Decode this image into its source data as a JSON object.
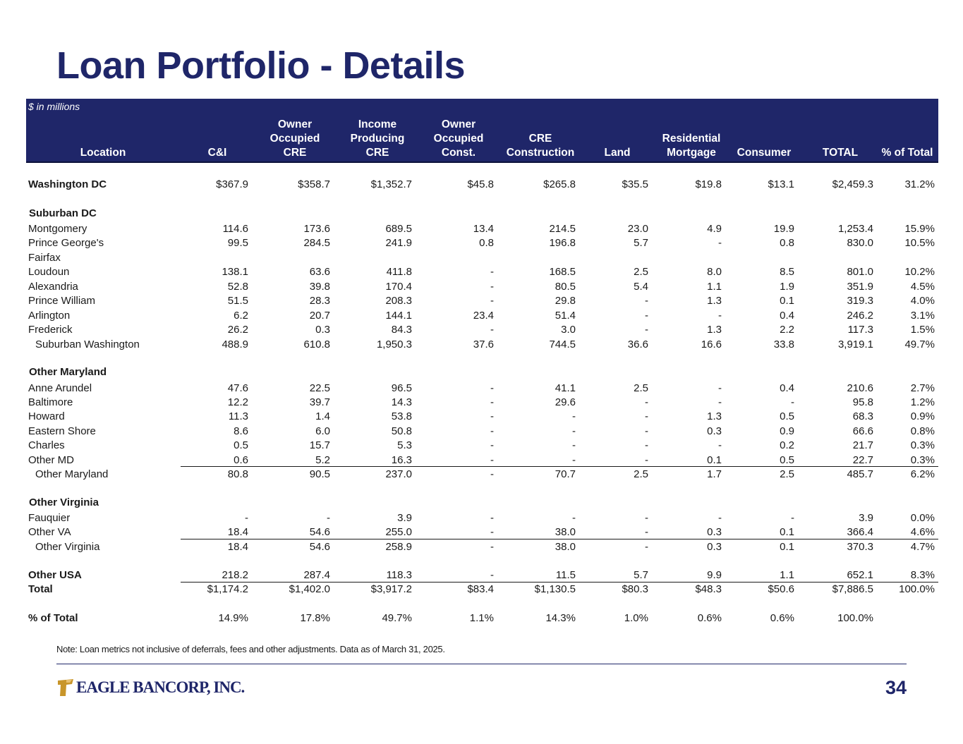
{
  "title": "Loan Portfolio - Details",
  "unit_note": "$ in millions",
  "columns": [
    {
      "key": "loc",
      "label": "Location"
    },
    {
      "key": "ci",
      "label": "C&I"
    },
    {
      "key": "oocre",
      "label": "Owner\nOccupied\nCRE"
    },
    {
      "key": "ipcre",
      "label": "Income\nProducing\nCRE"
    },
    {
      "key": "ooc",
      "label": "Owner\nOccupied\nConst."
    },
    {
      "key": "crec",
      "label": "CRE\nConstruction"
    },
    {
      "key": "land",
      "label": "Land"
    },
    {
      "key": "resm",
      "label": "Residential\nMortgage"
    },
    {
      "key": "cons",
      "label": "Consumer"
    },
    {
      "key": "total",
      "label": "TOTAL"
    },
    {
      "key": "pct",
      "label": "% of Total"
    }
  ],
  "rows": [
    {
      "label": "Washington DC",
      "style": "bold",
      "values": [
        "$367.9",
        "$358.7",
        "$1,352.7",
        "$45.8",
        "$265.8",
        "$35.5",
        "$19.8",
        "$13.1",
        "$2,459.3",
        "31.2%"
      ]
    },
    {
      "label": "Suburban DC",
      "style": "section",
      "values": []
    },
    {
      "label": "Montgomery",
      "values": [
        "114.6",
        "173.6",
        "689.5",
        "13.4",
        "214.5",
        "23.0",
        "4.9",
        "19.9",
        "1,253.4",
        "15.9%"
      ]
    },
    {
      "label": "Prince George's",
      "values": [
        "99.5",
        "284.5",
        "241.9",
        "0.8",
        "196.8",
        "5.7",
        "-",
        "0.8",
        "830.0",
        "10.5%"
      ]
    },
    {
      "label": "Fairfax",
      "values": []
    },
    {
      "label": "Loudoun",
      "values": [
        "138.1",
        "63.6",
        "411.8",
        "-",
        "168.5",
        "2.5",
        "8.0",
        "8.5",
        "801.0",
        "10.2%"
      ]
    },
    {
      "label": "Alexandria",
      "values": [
        "52.8",
        "39.8",
        "170.4",
        "-",
        "80.5",
        "5.4",
        "1.1",
        "1.9",
        "351.9",
        "4.5%"
      ]
    },
    {
      "label": "Prince William",
      "values": [
        "51.5",
        "28.3",
        "208.3",
        "-",
        "29.8",
        "-",
        "1.3",
        "0.1",
        "319.3",
        "4.0%"
      ]
    },
    {
      "label": "Arlington",
      "values": [
        "6.2",
        "20.7",
        "144.1",
        "23.4",
        "51.4",
        "-",
        "-",
        "0.4",
        "246.2",
        "3.1%"
      ]
    },
    {
      "label": "Frederick",
      "values": [
        "26.2",
        "0.3",
        "84.3",
        "-",
        "3.0",
        "-",
        "1.3",
        "2.2",
        "117.3",
        "1.5%"
      ]
    },
    {
      "label": "Suburban Washington",
      "style": "indent",
      "values": [
        "488.9",
        "610.8",
        "1,950.3",
        "37.6",
        "744.5",
        "36.6",
        "16.6",
        "33.8",
        "3,919.1",
        "49.7%"
      ]
    },
    {
      "label": "Other Maryland",
      "style": "section",
      "values": []
    },
    {
      "label": "Anne Arundel",
      "values": [
        "47.6",
        "22.5",
        "96.5",
        "-",
        "41.1",
        "2.5",
        "-",
        "0.4",
        "210.6",
        "2.7%"
      ]
    },
    {
      "label": "Baltimore",
      "values": [
        "12.2",
        "39.7",
        "14.3",
        "-",
        "29.6",
        "-",
        "-",
        "-",
        "95.8",
        "1.2%"
      ]
    },
    {
      "label": "Howard",
      "values": [
        "11.3",
        "1.4",
        "53.8",
        "-",
        "-",
        "-",
        "1.3",
        "0.5",
        "68.3",
        "0.9%"
      ]
    },
    {
      "label": "Eastern Shore",
      "values": [
        "8.6",
        "6.0",
        "50.8",
        "-",
        "-",
        "-",
        "0.3",
        "0.9",
        "66.6",
        "0.8%"
      ]
    },
    {
      "label": "Charles",
      "values": [
        "0.5",
        "15.7",
        "5.3",
        "-",
        "-",
        "-",
        "-",
        "0.2",
        "21.7",
        "0.3%"
      ]
    },
    {
      "label": "Other MD",
      "values": [
        "0.6",
        "5.2",
        "16.3",
        "-",
        "-",
        "-",
        "0.1",
        "0.5",
        "22.7",
        "0.3%"
      ]
    },
    {
      "label": "Other Maryland",
      "style": "indent",
      "values": [
        "80.8",
        "90.5",
        "237.0",
        "-",
        "70.7",
        "2.5",
        "1.7",
        "2.5",
        "485.7",
        "6.2%"
      ]
    },
    {
      "label": "Other Virginia",
      "style": "section",
      "values": []
    },
    {
      "label": "Fauquier",
      "values": [
        "-",
        "-",
        "3.9",
        "-",
        "-",
        "-",
        "-",
        "-",
        "3.9",
        "0.0%"
      ]
    },
    {
      "label": "Other VA",
      "values": [
        "18.4",
        "54.6",
        "255.0",
        "-",
        "38.0",
        "-",
        "0.3",
        "0.1",
        "366.4",
        "4.6%"
      ]
    },
    {
      "label": "Other Virginia",
      "style": "indent",
      "values": [
        "18.4",
        "54.6",
        "258.9",
        "-",
        "38.0",
        "-",
        "0.3",
        "0.1",
        "370.3",
        "4.7%"
      ]
    },
    {
      "label": "Other USA",
      "style": "bold",
      "values": [
        "218.2",
        "287.4",
        "118.3",
        "-",
        "11.5",
        "5.7",
        "9.9",
        "1.1",
        "652.1",
        "8.3%"
      ]
    },
    {
      "label": "Total",
      "style": "bold",
      "values": [
        "$1,174.2",
        "$1,402.0",
        "$3,917.2",
        "$83.4",
        "$1,130.5",
        "$80.3",
        "$48.3",
        "$50.6",
        "$7,886.5",
        "100.0%"
      ]
    },
    {
      "label": "% of Total",
      "style": "bold",
      "values": [
        "14.9%",
        "17.8%",
        "49.7%",
        "1.1%",
        "14.3%",
        "1.0%",
        "0.6%",
        "0.6%",
        "100.0%",
        ""
      ]
    }
  ],
  "note": "Note: Loan metrics not inclusive of deferrals, fees and other adjustments. Data as of March 31, 2025.",
  "footer": {
    "logo_text": "EAGLE BANCORP, INC.",
    "page_number": "34"
  },
  "colors": {
    "brand_navy": "#1f2669",
    "logo_gold": "#c8952a"
  }
}
